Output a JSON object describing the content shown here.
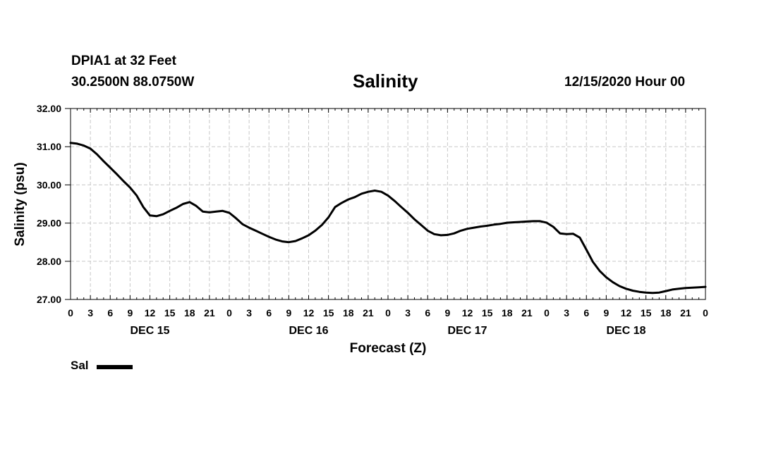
{
  "header": {
    "station": "DPIA1 at 32 Feet",
    "coords": "30.2500N 88.0750W",
    "title": "Salinity",
    "runtime": "12/15/2020 Hour 00"
  },
  "legend": {
    "label": "Sal",
    "color": "#000000"
  },
  "chart_data": {
    "type": "line",
    "title": "Salinity",
    "xlabel": "Forecast (Z)",
    "ylabel": "Salinity (psu)",
    "xlim": [
      0,
      96
    ],
    "ylim": [
      27,
      32
    ],
    "grid": true,
    "grid_style": "dashed",
    "yticks": [
      "27.00",
      "28.00",
      "29.00",
      "30.00",
      "31.00",
      "32.00"
    ],
    "hour_ticks": [
      "0",
      "3",
      "6",
      "9",
      "12",
      "15",
      "18",
      "21",
      "0",
      "3",
      "6",
      "9",
      "12",
      "15",
      "18",
      "21",
      "0",
      "3",
      "6",
      "9",
      "12",
      "15",
      "18",
      "21",
      "0",
      "3",
      "6",
      "9",
      "12",
      "15",
      "18",
      "21",
      "0"
    ],
    "day_labels": [
      {
        "label": "DEC 15",
        "hour": 12
      },
      {
        "label": "DEC 16",
        "hour": 36
      },
      {
        "label": "DEC 17",
        "hour": 60
      },
      {
        "label": "DEC 18",
        "hour": 84
      }
    ],
    "series": [
      {
        "name": "Sal",
        "color": "#000000",
        "x": [
          0,
          1,
          2,
          3,
          4,
          5,
          6,
          7,
          8,
          9,
          10,
          11,
          12,
          13,
          14,
          15,
          16,
          17,
          18,
          19,
          20,
          21,
          22,
          23,
          24,
          25,
          26,
          27,
          28,
          29,
          30,
          31,
          32,
          33,
          34,
          35,
          36,
          37,
          38,
          39,
          40,
          41,
          42,
          43,
          44,
          45,
          46,
          47,
          48,
          49,
          50,
          51,
          52,
          53,
          54,
          55,
          56,
          57,
          58,
          59,
          60,
          61,
          62,
          63,
          64,
          65,
          66,
          67,
          68,
          69,
          70,
          71,
          72,
          73,
          74,
          75,
          76,
          77,
          78,
          79,
          80,
          81,
          82,
          83,
          84,
          85,
          86,
          87,
          88,
          89,
          90,
          91,
          92,
          93,
          94,
          95,
          96
        ],
        "values": [
          31.1,
          31.08,
          31.03,
          30.95,
          30.8,
          30.62,
          30.45,
          30.28,
          30.1,
          29.93,
          29.72,
          29.42,
          29.2,
          29.18,
          29.23,
          29.32,
          29.4,
          29.5,
          29.55,
          29.45,
          29.3,
          29.28,
          29.3,
          29.32,
          29.27,
          29.13,
          28.97,
          28.88,
          28.8,
          28.72,
          28.64,
          28.57,
          28.52,
          28.5,
          28.53,
          28.6,
          28.68,
          28.8,
          28.95,
          29.15,
          29.42,
          29.53,
          29.62,
          29.68,
          29.77,
          29.82,
          29.85,
          29.82,
          29.72,
          29.58,
          29.42,
          29.27,
          29.1,
          28.95,
          28.8,
          28.71,
          28.68,
          28.69,
          28.73,
          28.8,
          28.85,
          28.88,
          28.91,
          28.93,
          28.96,
          28.98,
          29.01,
          29.02,
          29.03,
          29.04,
          29.05,
          29.05,
          29.01,
          28.9,
          28.73,
          28.71,
          28.72,
          28.62,
          28.3,
          27.98,
          27.75,
          27.58,
          27.45,
          27.35,
          27.28,
          27.23,
          27.2,
          27.18,
          27.17,
          27.18,
          27.22,
          27.26,
          27.28,
          27.3,
          27.31,
          27.32,
          27.33
        ]
      }
    ]
  }
}
